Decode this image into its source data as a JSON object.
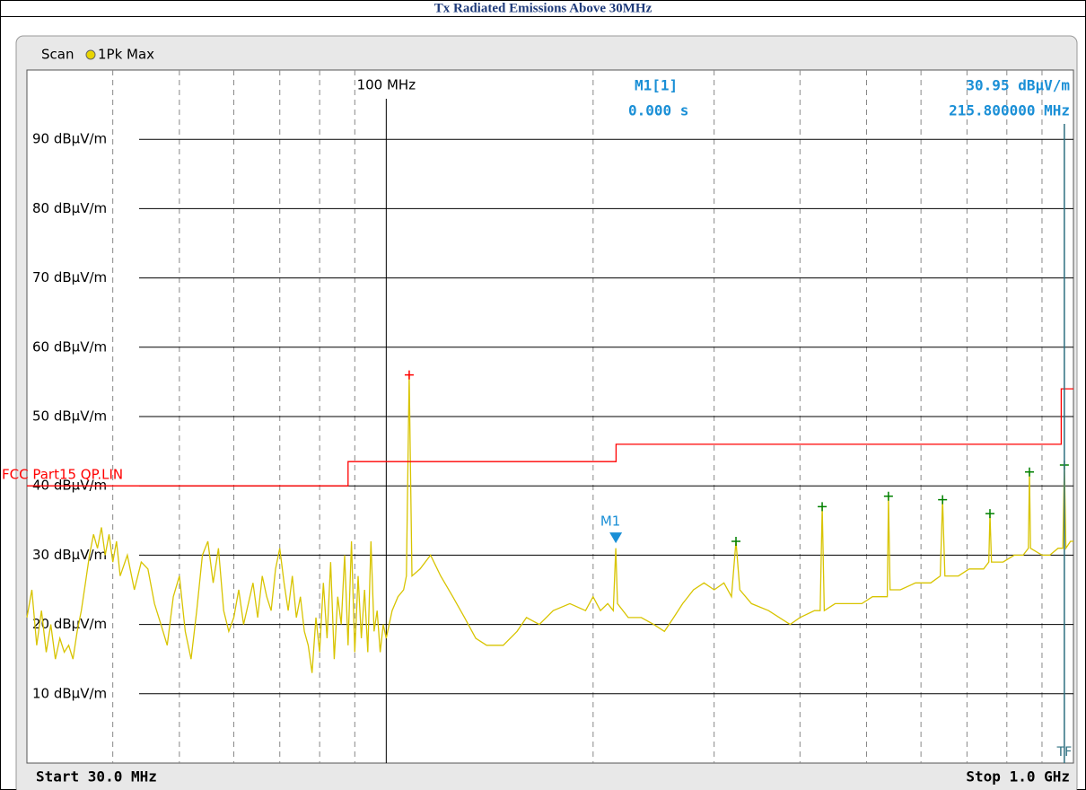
{
  "header": {
    "title": "Tx Radiated Emissions Above 30MHz"
  },
  "chart_data": {
    "type": "line",
    "mode_label": "Scan",
    "xlog": true,
    "xlim": [
      30,
      1000
    ],
    "ylim": [
      0,
      100
    ],
    "start_label": "Start 30.0 MHz",
    "stop_label": "Stop 1.0 GHz",
    "yticks": [
      {
        "value": 10,
        "label": "10 dBµV/m"
      },
      {
        "value": 20,
        "label": "20 dBµV/m"
      },
      {
        "value": 30,
        "label": "30 dBµV/m"
      },
      {
        "value": 40,
        "label": "40 dBµV/m"
      },
      {
        "value": 50,
        "label": "50 dBµV/m"
      },
      {
        "value": 60,
        "label": "60 dBµV/m"
      },
      {
        "value": 70,
        "label": "70 dBµV/m"
      },
      {
        "value": 80,
        "label": "80 dBµV/m"
      },
      {
        "value": 90,
        "label": "90 dBµV/m"
      }
    ],
    "xticks": [
      {
        "value": 100,
        "label": "100 MHz"
      }
    ],
    "xgrid": [
      40,
      50,
      60,
      70,
      80,
      90,
      200,
      300,
      400,
      500,
      600,
      700,
      800,
      900
    ],
    "series": [
      {
        "name": "1Pk Max",
        "color": "#d8c400",
        "x": [
          30,
          30.5,
          31,
          31.5,
          32,
          32.5,
          33,
          33.5,
          34,
          34.5,
          35,
          35.5,
          36,
          36.5,
          37,
          37.5,
          38,
          38.5,
          39,
          39.5,
          40,
          40.5,
          41,
          42,
          43,
          44,
          45,
          46,
          47,
          48,
          49,
          50,
          51,
          52,
          53,
          54,
          55,
          56,
          57,
          58,
          59,
          60,
          61,
          62,
          63,
          64,
          65,
          66,
          67,
          68,
          69,
          70,
          71,
          72,
          73,
          74,
          75,
          76,
          77,
          78,
          79,
          80,
          81,
          82,
          83,
          84,
          85,
          86,
          87,
          88,
          89,
          90,
          91,
          92,
          93,
          94,
          95,
          96,
          97,
          98,
          99,
          100,
          102,
          104,
          106,
          107,
          108,
          109,
          112,
          116,
          120,
          125,
          130,
          135,
          140,
          148,
          155,
          160,
          167,
          175,
          185,
          195,
          200,
          205,
          210,
          214,
          215.8,
          217,
          225,
          235,
          245,
          254,
          262,
          270,
          280,
          290,
          300,
          310,
          318,
          322.8,
          327,
          340,
          360,
          387,
          400,
          420,
          428,
          430.9,
          434,
          450,
          470,
          492,
          510,
          530,
          536,
          538,
          541,
          560,
          589,
          620,
          640,
          645,
          650,
          680,
          705,
          740,
          753,
          756,
          760,
          790,
          820,
          845,
          860,
          863,
          866,
          900,
          924,
          950,
          965,
          970,
          975,
          990,
          1000
        ],
        "values": [
          21,
          25,
          17,
          22,
          16,
          20,
          15,
          18,
          16,
          17,
          15,
          19,
          22,
          26,
          30,
          33,
          31,
          34,
          30,
          33,
          29,
          32,
          27,
          30,
          25,
          29,
          28,
          23,
          20,
          17,
          24,
          27,
          19,
          15,
          22,
          30,
          32,
          26,
          31,
          22,
          19,
          21,
          25,
          20,
          23,
          26,
          21,
          27,
          24,
          22,
          28,
          31,
          26,
          22,
          27,
          21,
          24,
          19,
          17,
          13,
          21,
          16,
          26,
          18,
          29,
          15,
          24,
          20,
          30,
          17,
          32,
          16,
          27,
          18,
          25,
          16,
          32,
          19,
          22,
          16,
          20,
          18,
          22,
          24,
          25,
          27,
          56,
          27,
          28,
          30,
          27,
          24,
          21,
          18,
          17,
          17,
          19,
          21,
          20,
          22,
          23,
          22,
          24,
          22,
          23,
          22,
          31,
          23,
          21,
          21,
          20,
          19,
          21,
          23,
          25,
          26,
          25,
          26,
          24,
          32,
          25,
          23,
          22,
          20,
          21,
          22,
          22,
          37,
          22,
          23,
          23,
          23,
          24,
          24,
          24,
          38.5,
          25,
          25,
          26,
          26,
          27,
          38,
          27,
          27,
          28,
          28,
          29,
          36,
          29,
          29,
          30,
          30,
          31,
          42,
          31,
          30,
          30,
          31,
          31,
          43,
          31,
          32,
          32
        ]
      },
      {
        "name": "FCC Part15 QP.LIN",
        "color": "#ff0000",
        "x": [
          30,
          88,
          88,
          216,
          216,
          960,
          960,
          1000
        ],
        "values": [
          40,
          40,
          43.5,
          43.5,
          46,
          46,
          54,
          54
        ]
      }
    ],
    "peaks": {
      "x": [
        108,
        322.8,
        430.9,
        538,
        645,
        756,
        863,
        970
      ],
      "values": [
        56,
        32,
        37,
        38.5,
        38,
        36,
        42,
        43
      ],
      "colors": [
        "#ff0000",
        "#008000",
        "#008000",
        "#008000",
        "#008000",
        "#008000",
        "#008000",
        "#008000"
      ]
    },
    "marker": {
      "label": "M1",
      "readout_name": "M1[1]",
      "x": 215.8,
      "y": 30.95,
      "x_label": "215.800000 MHz",
      "y_label": "30.95 dBµV/m",
      "time_label": "0.000 s",
      "color": "#1a8fd6"
    },
    "tf": {
      "label": "TF",
      "x": 970,
      "color": "#2e6f80"
    }
  }
}
